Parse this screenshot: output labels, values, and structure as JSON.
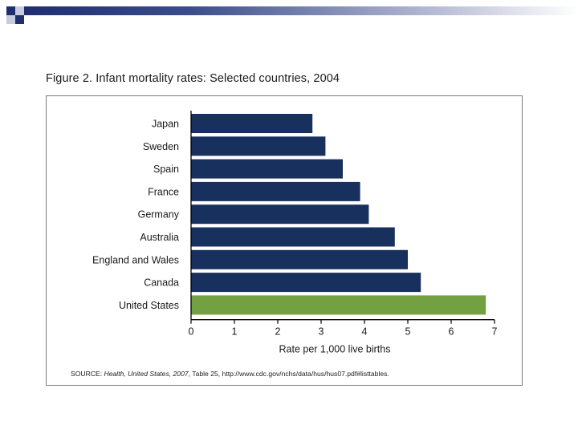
{
  "figure": {
    "title": "Figure 2.  Infant mortality rates:  Selected countries, 2004"
  },
  "source": {
    "prefix": "SOURCE:  ",
    "publication": "Health, United States, 2007",
    "suffix": ", Table 25, http://www.cdc.gov/nchs/data/hus/hus07.pdf#listtables."
  },
  "colors": {
    "bar_default": "#17305e",
    "bar_highlight": "#73a040",
    "axis": "#000000",
    "text": "#1a1a1a",
    "header_navy": "#1f2e6e",
    "header_light": "#c8cbe0"
  },
  "chart_data": {
    "type": "bar",
    "orientation": "horizontal",
    "title": "Figure 2.  Infant mortality rates:  Selected countries, 2004",
    "xlabel": "Rate per 1,000 live births",
    "ylabel": "",
    "xlim": [
      0,
      7
    ],
    "xticks": [
      0,
      1,
      2,
      3,
      4,
      5,
      6,
      7
    ],
    "grid": false,
    "legend": "none",
    "categories": [
      "Japan",
      "Sweden",
      "Spain",
      "France",
      "Germany",
      "Australia",
      "England and Wales",
      "Canada",
      "United States"
    ],
    "values": [
      2.8,
      3.1,
      3.5,
      3.9,
      4.1,
      4.7,
      5.0,
      5.3,
      6.8
    ],
    "highlight": "United States"
  }
}
